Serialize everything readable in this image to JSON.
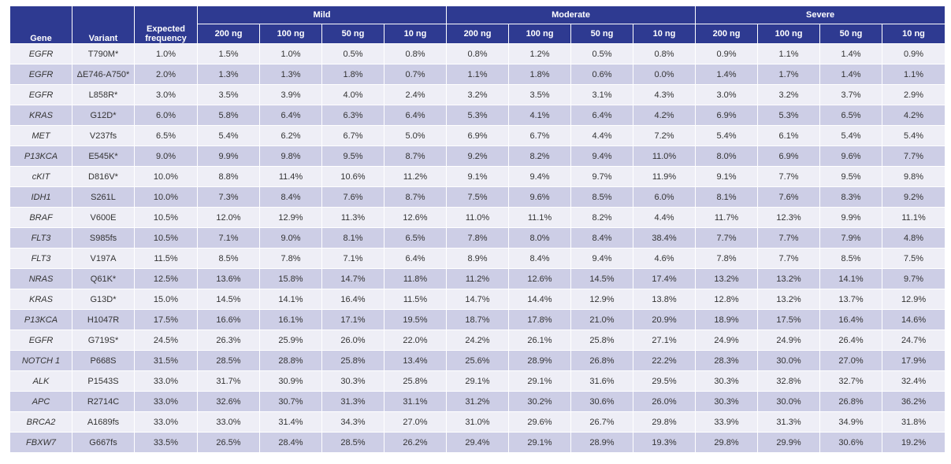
{
  "headers": {
    "gene": "Gene",
    "variant": "Variant",
    "expected_line1": "Expected",
    "expected_line2": "frequency",
    "groups": [
      "Mild",
      "Moderate",
      "Severe"
    ],
    "amounts": [
      "200 ng",
      "100 ng",
      "50 ng",
      "10 ng"
    ]
  },
  "colors": {
    "header_bg": "#2e3a91",
    "row_light": "#eeeef6",
    "row_dark": "#cdcee6"
  },
  "rows": [
    {
      "gene": "EGFR",
      "variant": "T790M*",
      "expected": "1.0%",
      "values": [
        "1.5%",
        "1.0%",
        "0.5%",
        "0.8%",
        "0.8%",
        "1.2%",
        "0.5%",
        "0.8%",
        "0.9%",
        "1.1%",
        "1.4%",
        "0.9%"
      ]
    },
    {
      "gene": "EGFR",
      "variant": "ΔE746-A750*",
      "expected": "2.0%",
      "values": [
        "1.3%",
        "1.3%",
        "1.8%",
        "0.7%",
        "1.1%",
        "1.8%",
        "0.6%",
        "0.0%",
        "1.4%",
        "1.7%",
        "1.4%",
        "1.1%"
      ]
    },
    {
      "gene": "EGFR",
      "variant": "L858R*",
      "expected": "3.0%",
      "values": [
        "3.5%",
        "3.9%",
        "4.0%",
        "2.4%",
        "3.2%",
        "3.5%",
        "3.1%",
        "4.3%",
        "3.0%",
        "3.2%",
        "3.7%",
        "2.9%"
      ]
    },
    {
      "gene": "KRAS",
      "variant": "G12D*",
      "expected": "6.0%",
      "values": [
        "5.8%",
        "6.4%",
        "6.3%",
        "6.4%",
        "5.3%",
        "4.1%",
        "6.4%",
        "4.2%",
        "6.9%",
        "5.3%",
        "6.5%",
        "4.2%"
      ]
    },
    {
      "gene": "MET",
      "variant": "V237fs",
      "expected": "6.5%",
      "values": [
        "5.4%",
        "6.2%",
        "6.7%",
        "5.0%",
        "6.9%",
        "6.7%",
        "4.4%",
        "7.2%",
        "5.4%",
        "6.1%",
        "5.4%",
        "5.4%"
      ]
    },
    {
      "gene": "P13KCA",
      "variant": "E545K*",
      "expected": "9.0%",
      "values": [
        "9.9%",
        "9.8%",
        "9.5%",
        "8.7%",
        "9.2%",
        "8.2%",
        "9.4%",
        "11.0%",
        "8.0%",
        "6.9%",
        "9.6%",
        "7.7%"
      ]
    },
    {
      "gene": "cKIT",
      "variant": "D816V*",
      "expected": "10.0%",
      "values": [
        "8.8%",
        "11.4%",
        "10.6%",
        "11.2%",
        "9.1%",
        "9.4%",
        "9.7%",
        "11.9%",
        "9.1%",
        "7.7%",
        "9.5%",
        "9.8%"
      ]
    },
    {
      "gene": "IDH1",
      "variant": "S261L",
      "expected": "10.0%",
      "values": [
        "7.3%",
        "8.4%",
        "7.6%",
        "8.7%",
        "7.5%",
        "9.6%",
        "8.5%",
        "6.0%",
        "8.1%",
        "7.6%",
        "8.3%",
        "9.2%"
      ]
    },
    {
      "gene": "BRAF",
      "variant": "V600E",
      "expected": "10.5%",
      "values": [
        "12.0%",
        "12.9%",
        "11.3%",
        "12.6%",
        "11.0%",
        "11.1%",
        "8.2%",
        "4.4%",
        "11.7%",
        "12.3%",
        "9.9%",
        "11.1%"
      ]
    },
    {
      "gene": "FLT3",
      "variant": "S985fs",
      "expected": "10.5%",
      "values": [
        "7.1%",
        "9.0%",
        "8.1%",
        "6.5%",
        "7.8%",
        "8.0%",
        "8.4%",
        "38.4%",
        "7.7%",
        "7.7%",
        "7.9%",
        "4.8%"
      ]
    },
    {
      "gene": "FLT3",
      "variant": "V197A",
      "expected": "11.5%",
      "values": [
        "8.5%",
        "7.8%",
        "7.1%",
        "6.4%",
        "8.9%",
        "8.4%",
        "9.4%",
        "4.6%",
        "7.8%",
        "7.7%",
        "8.5%",
        "7.5%"
      ]
    },
    {
      "gene": "NRAS",
      "variant": "Q61K*",
      "expected": "12.5%",
      "values": [
        "13.6%",
        "15.8%",
        "14.7%",
        "11.8%",
        "11.2%",
        "12.6%",
        "14.5%",
        "17.4%",
        "13.2%",
        "13.2%",
        "14.1%",
        "9.7%"
      ]
    },
    {
      "gene": "KRAS",
      "variant": "G13D*",
      "expected": "15.0%",
      "values": [
        "14.5%",
        "14.1%",
        "16.4%",
        "11.5%",
        "14.7%",
        "14.4%",
        "12.9%",
        "13.8%",
        "12.8%",
        "13.2%",
        "13.7%",
        "12.9%"
      ]
    },
    {
      "gene": "P13KCA",
      "variant": "H1047R",
      "expected": "17.5%",
      "values": [
        "16.6%",
        "16.1%",
        "17.1%",
        "19.5%",
        "18.7%",
        "17.8%",
        "21.0%",
        "20.9%",
        "18.9%",
        "17.5%",
        "16.4%",
        "14.6%"
      ]
    },
    {
      "gene": "EGFR",
      "variant": "G719S*",
      "expected": "24.5%",
      "values": [
        "26.3%",
        "25.9%",
        "26.0%",
        "22.0%",
        "24.2%",
        "26.1%",
        "25.8%",
        "27.1%",
        "24.9%",
        "24.9%",
        "26.4%",
        "24.7%"
      ]
    },
    {
      "gene": "NOTCH 1",
      "variant": "P668S",
      "expected": "31.5%",
      "values": [
        "28.5%",
        "28.8%",
        "25.8%",
        "13.4%",
        "25.6%",
        "28.9%",
        "26.8%",
        "22.2%",
        "28.3%",
        "30.0%",
        "27.0%",
        "17.9%"
      ]
    },
    {
      "gene": "ALK",
      "variant": "P1543S",
      "expected": "33.0%",
      "values": [
        "31.7%",
        "30.9%",
        "30.3%",
        "25.8%",
        "29.1%",
        "29.1%",
        "31.6%",
        "29.5%",
        "30.3%",
        "32.8%",
        "32.7%",
        "32.4%"
      ]
    },
    {
      "gene": "APC",
      "variant": "R2714C",
      "expected": "33.0%",
      "values": [
        "32.6%",
        "30.7%",
        "31.3%",
        "31.1%",
        "31.2%",
        "30.2%",
        "30.6%",
        "26.0%",
        "30.3%",
        "30.0%",
        "26.8%",
        "36.2%"
      ]
    },
    {
      "gene": "BRCA2",
      "variant": "A1689fs",
      "expected": "33.0%",
      "values": [
        "33.0%",
        "31.4%",
        "34.3%",
        "27.0%",
        "31.0%",
        "29.6%",
        "26.7%",
        "29.8%",
        "33.9%",
        "31.3%",
        "34.9%",
        "31.8%"
      ]
    },
    {
      "gene": "FBXW7",
      "variant": "G667fs",
      "expected": "33.5%",
      "values": [
        "26.5%",
        "28.4%",
        "28.5%",
        "26.2%",
        "29.4%",
        "29.1%",
        "28.9%",
        "19.3%",
        "29.8%",
        "29.9%",
        "30.6%",
        "19.2%"
      ]
    }
  ]
}
